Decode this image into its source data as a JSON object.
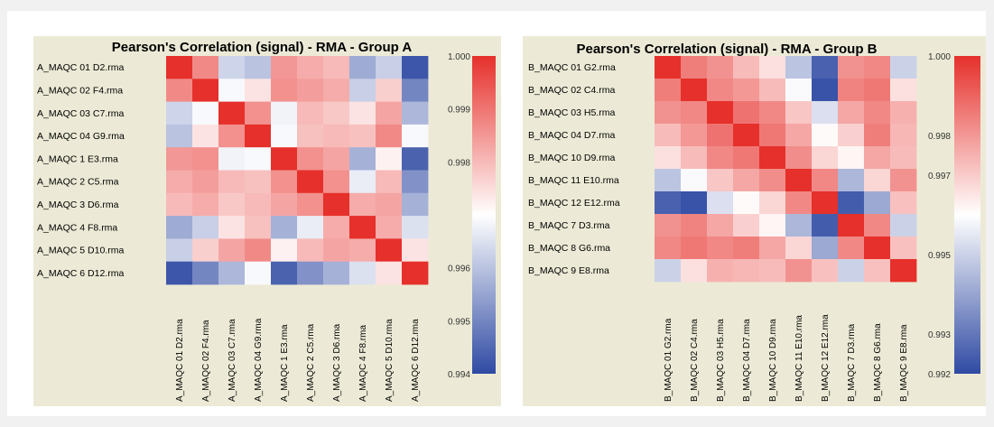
{
  "chart_data": [
    {
      "type": "heatmap",
      "title": "Pearson's Correlation (signal) - RMA - Group A",
      "row_labels": [
        "A_MAQC 01 D2.rma",
        "A_MAQC 02 F4.rma",
        "A_MAQC 03 C7.rma",
        "A_MAQC 04 G9.rma",
        "A_MAQC 1 E3.rma",
        "A_MAQC 2 C5.rma",
        "A_MAQC 3 D6.rma",
        "A_MAQC 4 F8.rma",
        "A_MAQC 5 D10.rma",
        "A_MAQC 6 D12.rma"
      ],
      "col_labels": [
        "A_MAQC 01 D2.rma",
        "A_MAQC 02 F4.rma",
        "A_MAQC 03 C7.rma",
        "A_MAQC 04 G9.rma",
        "A_MAQC 1 E3.rma",
        "A_MAQC 2 C5.rma",
        "A_MAQC 3 D6.rma",
        "A_MAQC 4 F8.rma",
        "A_MAQC 5 D10.rma",
        "A_MAQC 6 D12.rma"
      ],
      "values": [
        [
          1.0,
          0.9987,
          0.9963,
          0.996,
          0.9985,
          0.9982,
          0.998,
          0.9956,
          0.9962,
          0.9942
        ],
        [
          0.9987,
          1.0,
          0.9969,
          0.9974,
          0.9986,
          0.9984,
          0.9982,
          0.9962,
          0.9977,
          0.995
        ],
        [
          0.9963,
          0.9969,
          1.0,
          0.9986,
          0.9968,
          0.998,
          0.9978,
          0.9974,
          0.9983,
          0.9958
        ],
        [
          0.996,
          0.9974,
          0.9986,
          1.0,
          0.9969,
          0.9979,
          0.998,
          0.9979,
          0.9987,
          0.9969
        ],
        [
          0.9985,
          0.9986,
          0.9968,
          0.9969,
          1.0,
          0.9986,
          0.9983,
          0.9957,
          0.9972,
          0.9944
        ],
        [
          0.9982,
          0.9984,
          0.998,
          0.9979,
          0.9986,
          1.0,
          0.9986,
          0.9967,
          0.998,
          0.9952
        ],
        [
          0.998,
          0.9982,
          0.9978,
          0.998,
          0.9983,
          0.9986,
          1.0,
          0.9982,
          0.9983,
          0.9957
        ],
        [
          0.9956,
          0.9962,
          0.9974,
          0.9979,
          0.9957,
          0.9967,
          0.9982,
          1.0,
          0.9982,
          0.9965
        ],
        [
          0.9962,
          0.9977,
          0.9983,
          0.9987,
          0.9972,
          0.998,
          0.9983,
          0.9982,
          1.0,
          0.9974
        ],
        [
          0.9942,
          0.995,
          0.9958,
          0.9969,
          0.9944,
          0.9952,
          0.9957,
          0.9965,
          0.9974,
          1.0
        ]
      ],
      "scale_min": 0.994,
      "scale_max": 1.0,
      "scale_labels": [
        "1.000",
        "0.999",
        "0.998",
        "0.996",
        "0.995",
        "0.994"
      ],
      "scale_values": [
        1.0,
        0.999,
        0.998,
        0.996,
        0.995,
        0.994
      ],
      "colors": {
        "high": "#e6302b",
        "mid": "#ffffff",
        "low": "#2f4aa3"
      },
      "legend_placement": "right"
    },
    {
      "type": "heatmap",
      "title": "Pearson's Correlation (signal) - RMA - Group B",
      "row_labels": [
        "B_MAQC 01 G2.rma",
        "B_MAQC 02 C4.rma",
        "B_MAQC 03 H5.rma",
        "B_MAQC 04 D7.rma",
        "B_MAQC 10 D9.rma",
        "B_MAQC 11 E10.rma",
        "B_MAQC 12 E12.rma",
        "B_MAQC 7 D3.rma",
        "B_MAQC 8 G6.rma",
        "B_MAQC 9 E8.rma"
      ],
      "col_labels": [
        "B_MAQC 01 G2.rma",
        "B_MAQC 02 C4.rma",
        "B_MAQC 03 H5.rma",
        "B_MAQC 04 D7.rma",
        "B_MAQC 10 D9.rma",
        "B_MAQC 11 E10.rma",
        "B_MAQC 12 E12.rma",
        "B_MAQC 7 D3.rma",
        "B_MAQC 8 G6.rma",
        "B_MAQC 9 E8.rma"
      ],
      "values": [
        [
          1.0,
          0.9985,
          0.9981,
          0.9973,
          0.9966,
          0.9947,
          0.9925,
          0.9981,
          0.9983,
          0.995
        ],
        [
          0.9985,
          1.0,
          0.9983,
          0.998,
          0.9973,
          0.9959,
          0.9922,
          0.9984,
          0.9986,
          0.9966
        ],
        [
          0.9981,
          0.9983,
          1.0,
          0.9987,
          0.9983,
          0.9971,
          0.9953,
          0.9977,
          0.9983,
          0.9975
        ],
        [
          0.9973,
          0.998,
          0.9987,
          1.0,
          0.9986,
          0.9977,
          0.9961,
          0.9969,
          0.9985,
          0.9974
        ],
        [
          0.9966,
          0.9973,
          0.9983,
          0.9986,
          1.0,
          0.9982,
          0.9968,
          0.9962,
          0.9977,
          0.9973
        ],
        [
          0.9947,
          0.9959,
          0.9971,
          0.9977,
          0.9982,
          1.0,
          0.9983,
          0.9944,
          0.9968,
          0.9981
        ],
        [
          0.9925,
          0.9922,
          0.9953,
          0.9961,
          0.9968,
          0.9983,
          1.0,
          0.9924,
          0.9941,
          0.9972
        ],
        [
          0.9981,
          0.9984,
          0.9977,
          0.9969,
          0.9962,
          0.9944,
          0.9924,
          1.0,
          0.9983,
          0.995
        ],
        [
          0.9983,
          0.9986,
          0.9983,
          0.9985,
          0.9977,
          0.9968,
          0.9941,
          0.9983,
          1.0,
          0.9972
        ],
        [
          0.995,
          0.9966,
          0.9975,
          0.9974,
          0.9973,
          0.9981,
          0.9972,
          0.995,
          0.9972,
          1.0
        ]
      ],
      "scale_min": 0.992,
      "scale_max": 1.0,
      "scale_labels": [
        "1.000",
        "0.998",
        "0.997",
        "0.995",
        "0.993",
        "0.992"
      ],
      "scale_values": [
        1.0,
        0.998,
        0.997,
        0.995,
        0.993,
        0.992
      ],
      "colors": {
        "high": "#e6302b",
        "mid": "#ffffff",
        "low": "#2f4aa3"
      },
      "legend_placement": "right"
    }
  ]
}
